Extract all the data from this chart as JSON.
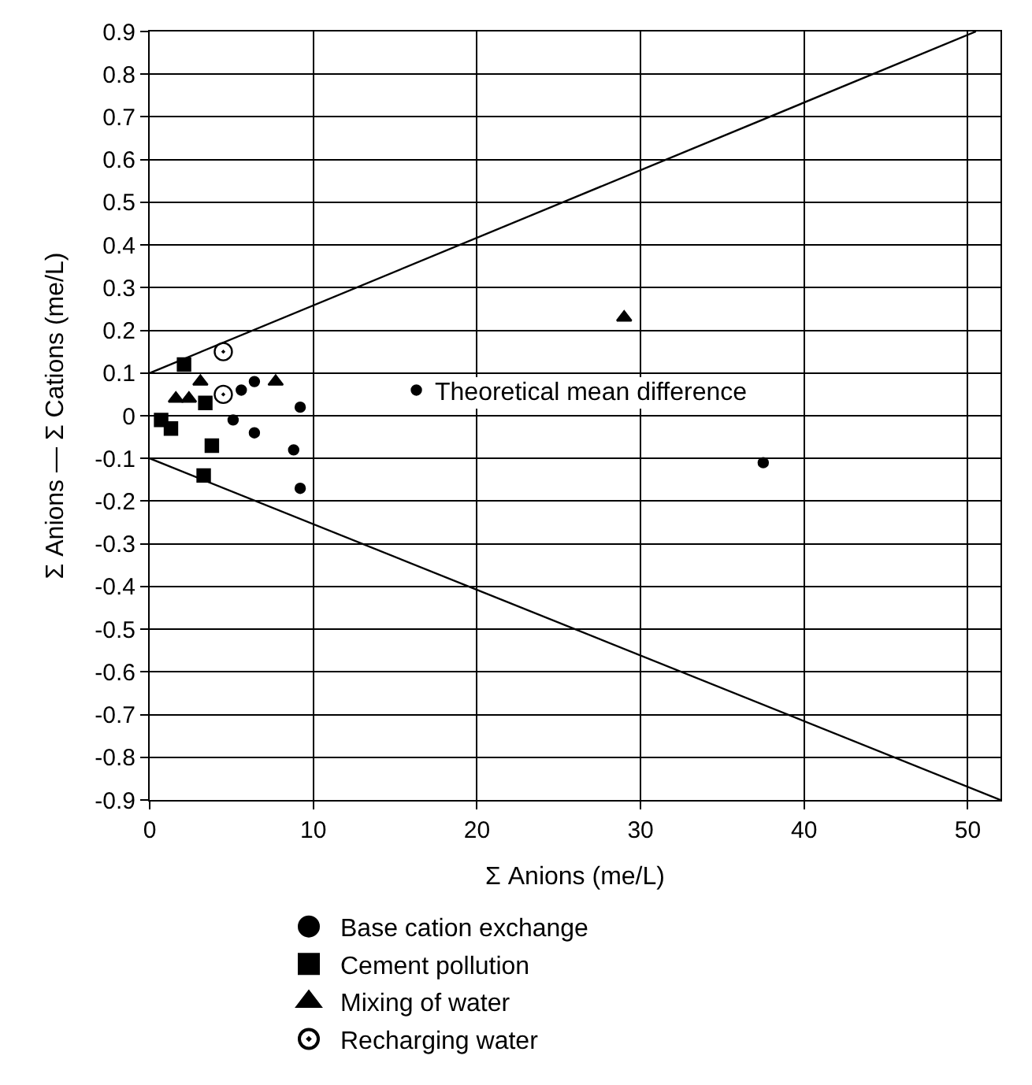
{
  "chart_data": {
    "type": "scatter",
    "xlabel": "Σ Anions (me/L)",
    "ylabel": "Σ Anions — Σ Cations (me/L)",
    "xlim": [
      0,
      52
    ],
    "xticks": [
      0,
      10,
      20,
      30,
      40,
      50
    ],
    "ylim": [
      -0.9,
      0.9
    ],
    "yticks": [
      -0.9,
      -0.8,
      -0.7,
      -0.6,
      -0.5,
      -0.4,
      -0.3,
      -0.2,
      -0.1,
      0,
      0.1,
      0.2,
      0.3,
      0.4,
      0.5,
      0.6,
      0.7,
      0.8,
      0.9
    ],
    "grid": true,
    "legend": "bottom",
    "annotations": [
      {
        "text": "Theoretical mean difference",
        "x": 16.3,
        "y": 0.055
      }
    ],
    "series": [
      {
        "name": "Base cation exchange",
        "color": "#000000",
        "marker": "circle",
        "x": [
          5.6,
          6.4,
          9.2,
          5.1,
          6.4,
          8.8,
          9.2,
          16.3,
          37.5
        ],
        "values": [
          0.06,
          0.08,
          0.02,
          -0.01,
          -0.04,
          -0.08,
          -0.17,
          0.06,
          -0.11
        ]
      },
      {
        "name": "Cement pollution",
        "color": "#000000",
        "marker": "square",
        "x": [
          2.1,
          3.4,
          0.7,
          1.3,
          3.8,
          3.3
        ],
        "values": [
          0.12,
          0.03,
          -0.01,
          -0.03,
          -0.07,
          -0.14
        ]
      },
      {
        "name": "Mixing of water",
        "color": "#000000",
        "marker": "triangle",
        "x": [
          1.6,
          2.4,
          3.1,
          7.7,
          29.0
        ],
        "values": [
          0.04,
          0.04,
          0.08,
          0.08,
          0.23
        ]
      },
      {
        "name": "Recharging water",
        "color": "#000000",
        "marker": "circle-dot",
        "x": [
          4.5,
          4.5
        ],
        "values": [
          0.15,
          0.05
        ]
      },
      {
        "type": "line",
        "color": "#000000",
        "x": [
          0,
          50.5
        ],
        "values": [
          0.1,
          0.9
        ]
      },
      {
        "type": "line",
        "color": "#000000",
        "x": [
          0,
          52
        ],
        "values": [
          -0.1,
          -0.9
        ]
      }
    ]
  }
}
